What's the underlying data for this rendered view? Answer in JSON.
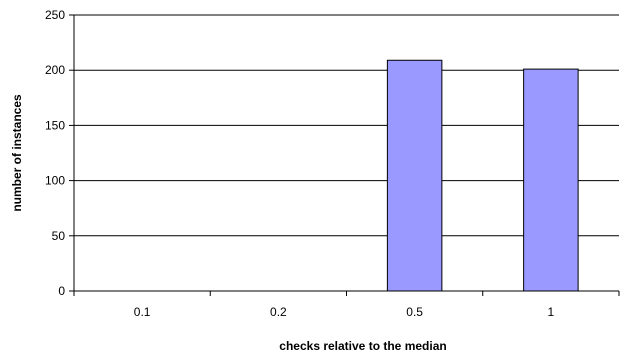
{
  "chart_data": {
    "type": "bar",
    "title": "",
    "xlabel": "checks relative to the median",
    "ylabel": "number of instances",
    "categories": [
      "0.1",
      "0.2",
      "0.5",
      "1"
    ],
    "values": [
      0,
      0,
      209,
      201
    ],
    "ylim": [
      0,
      250
    ],
    "yticks": [
      0,
      50,
      100,
      150,
      200,
      250
    ],
    "grid": true,
    "legend": "none",
    "colors": {
      "bar_fill": "#9999ff",
      "bar_stroke": "#000000",
      "grid": "#000000",
      "axis": "#000000",
      "text": "#000000"
    }
  }
}
